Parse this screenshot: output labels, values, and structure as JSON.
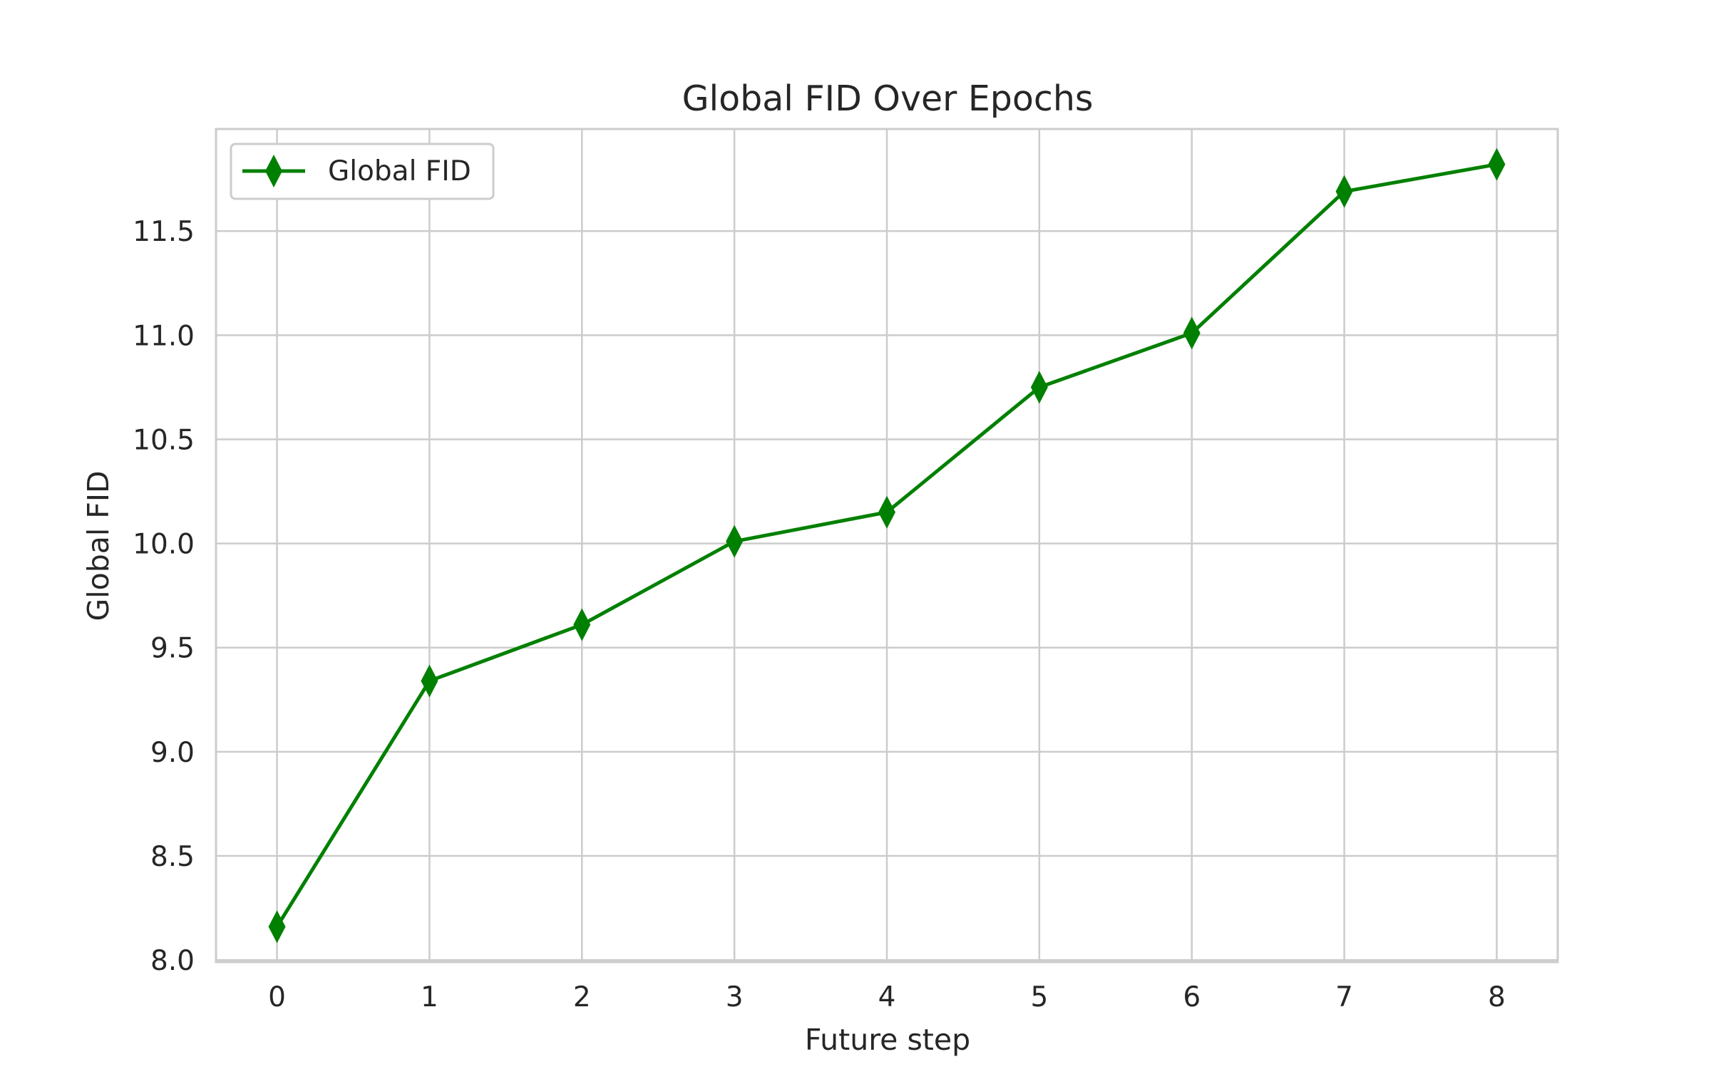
{
  "chart_data": {
    "type": "line",
    "title": "Global FID Over Epochs",
    "xlabel": "Future step",
    "ylabel": "Global FID",
    "x": [
      0,
      1,
      2,
      3,
      4,
      5,
      6,
      7,
      8
    ],
    "xticks": [
      "0",
      "1",
      "2",
      "3",
      "4",
      "5",
      "6",
      "7",
      "8"
    ],
    "yticks": [
      "8.0",
      "8.5",
      "9.0",
      "9.5",
      "10.0",
      "10.5",
      "11.0",
      "11.5"
    ],
    "xlim": [
      -0.4,
      8.4
    ],
    "ylim": [
      7.99,
      11.99
    ],
    "grid": true,
    "legend_position": "top-left",
    "series": [
      {
        "name": "Global FID",
        "color": "#008000",
        "marker": "diamond",
        "values": [
          8.16,
          9.34,
          9.61,
          10.01,
          10.15,
          10.75,
          11.01,
          11.69,
          11.82
        ]
      }
    ]
  }
}
